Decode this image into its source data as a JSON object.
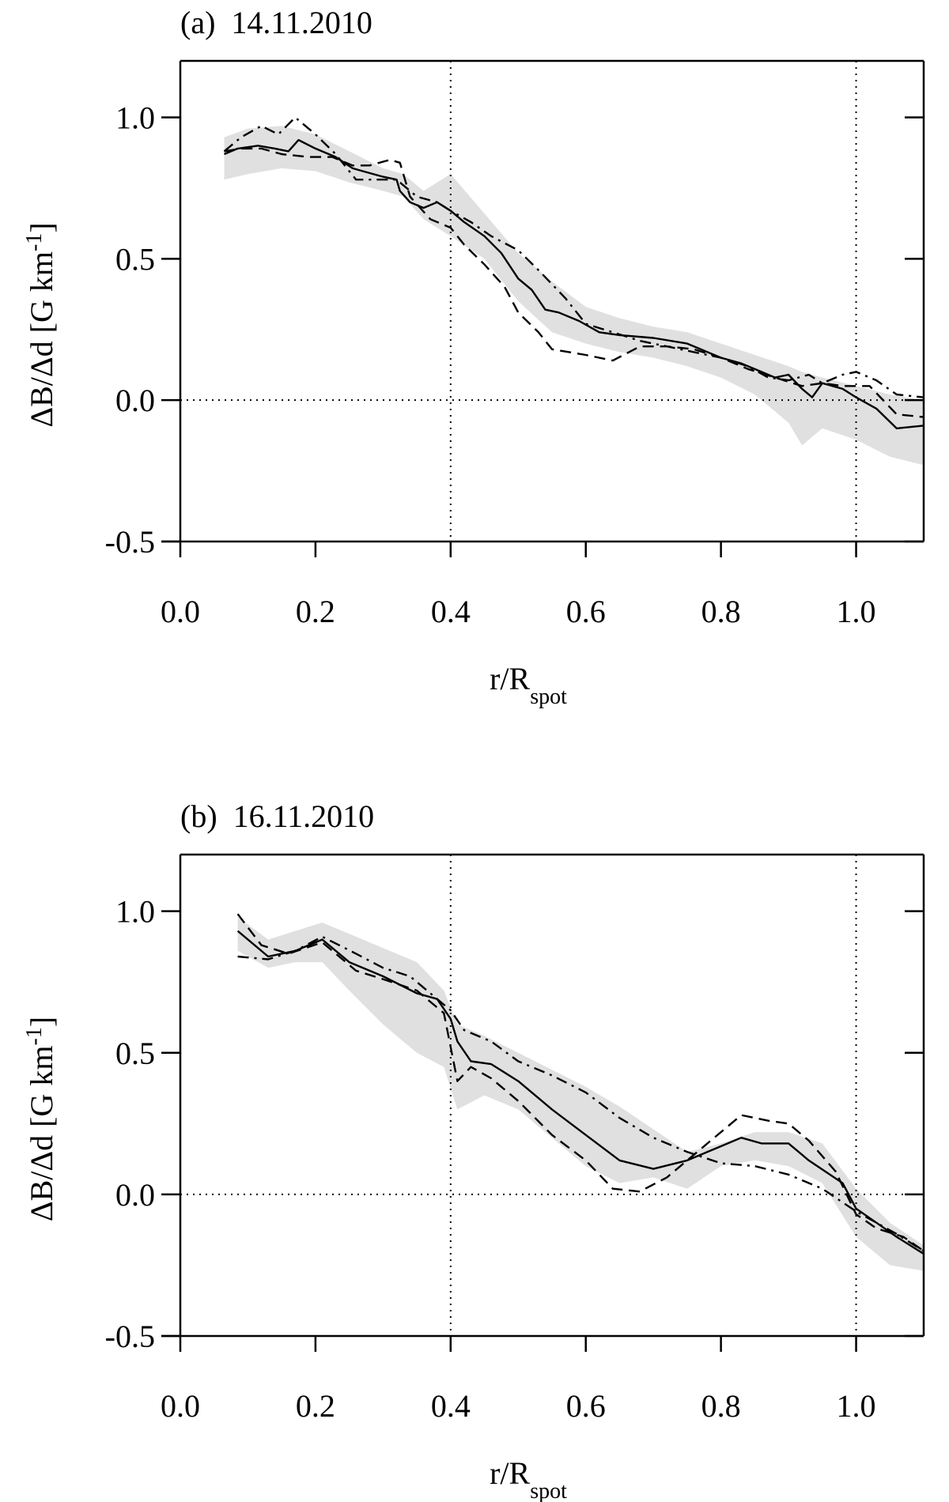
{
  "chart_data": [
    {
      "type": "line",
      "title": "(a)  14.11.2010",
      "xlabel_main": "r/R",
      "xlabel_sub": "spot",
      "ylabel_main": "ΔB/Δd [G km",
      "ylabel_sup": "-1",
      "ylabel_close": "]",
      "xlim": [
        0.0,
        1.1
      ],
      "ylim": [
        -0.5,
        1.2
      ],
      "xticks": [
        0.0,
        0.2,
        0.4,
        0.6,
        0.8,
        1.0
      ],
      "xtick_labels": [
        "0.0",
        "0.2",
        "0.4",
        "0.6",
        "0.8",
        "1.0"
      ],
      "yticks": [
        -0.5,
        0.0,
        0.5,
        1.0
      ],
      "ytick_labels": [
        "-0.5",
        "0.0",
        "0.5",
        "1.0"
      ],
      "vlines": [
        0.4,
        1.0
      ],
      "hline": 0.0,
      "band": {
        "x": [
          0.065,
          0.1,
          0.15,
          0.2,
          0.25,
          0.3,
          0.33,
          0.36,
          0.4,
          0.45,
          0.5,
          0.55,
          0.6,
          0.65,
          0.7,
          0.75,
          0.8,
          0.85,
          0.9,
          0.92,
          0.95,
          1.0,
          1.05,
          1.1
        ],
        "upper": [
          0.93,
          0.96,
          0.97,
          0.94,
          0.88,
          0.82,
          0.8,
          0.74,
          0.8,
          0.66,
          0.52,
          0.42,
          0.33,
          0.29,
          0.26,
          0.24,
          0.2,
          0.16,
          0.12,
          0.1,
          0.08,
          0.05,
          0.02,
          0.0
        ],
        "lower": [
          0.78,
          0.8,
          0.82,
          0.81,
          0.77,
          0.74,
          0.72,
          0.64,
          0.58,
          0.5,
          0.35,
          0.24,
          0.2,
          0.17,
          0.15,
          0.12,
          0.08,
          0.02,
          -0.08,
          -0.16,
          -0.1,
          -0.14,
          -0.2,
          -0.23
        ]
      },
      "series": [
        {
          "name": "solid",
          "style": "solid",
          "x": [
            0.065,
            0.085,
            0.115,
            0.14,
            0.16,
            0.175,
            0.2,
            0.23,
            0.255,
            0.27,
            0.3,
            0.32,
            0.325,
            0.34,
            0.36,
            0.38,
            0.4,
            0.42,
            0.45,
            0.475,
            0.5,
            0.52,
            0.54,
            0.56,
            0.59,
            0.62,
            0.65,
            0.7,
            0.75,
            0.8,
            0.83,
            0.86,
            0.88,
            0.9,
            0.92,
            0.935,
            0.95,
            0.98,
            1.0,
            1.03,
            1.06,
            1.1
          ],
          "y": [
            0.87,
            0.89,
            0.9,
            0.89,
            0.88,
            0.92,
            0.89,
            0.86,
            0.82,
            0.81,
            0.79,
            0.78,
            0.74,
            0.7,
            0.68,
            0.7,
            0.67,
            0.63,
            0.58,
            0.52,
            0.43,
            0.39,
            0.32,
            0.31,
            0.28,
            0.24,
            0.23,
            0.22,
            0.2,
            0.15,
            0.13,
            0.1,
            0.08,
            0.09,
            0.04,
            0.01,
            0.06,
            0.04,
            0.01,
            -0.03,
            -0.1,
            -0.09
          ]
        },
        {
          "name": "dashed",
          "style": "dashed",
          "x": [
            0.065,
            0.09,
            0.12,
            0.15,
            0.19,
            0.225,
            0.255,
            0.28,
            0.31,
            0.325,
            0.34,
            0.37,
            0.4,
            0.42,
            0.45,
            0.48,
            0.5,
            0.53,
            0.55,
            0.6,
            0.64,
            0.68,
            0.72,
            0.76,
            0.8,
            0.84,
            0.88,
            0.92,
            0.95,
            0.98,
            1.02,
            1.06,
            1.1
          ],
          "y": [
            0.88,
            0.89,
            0.89,
            0.87,
            0.86,
            0.86,
            0.83,
            0.83,
            0.85,
            0.84,
            0.72,
            0.64,
            0.61,
            0.55,
            0.48,
            0.4,
            0.31,
            0.24,
            0.18,
            0.16,
            0.14,
            0.19,
            0.19,
            0.18,
            0.15,
            0.11,
            0.08,
            0.05,
            0.06,
            0.05,
            0.05,
            -0.05,
            -0.06
          ]
        },
        {
          "name": "dash-dot",
          "style": "dashdot",
          "x": [
            0.065,
            0.09,
            0.12,
            0.145,
            0.17,
            0.2,
            0.23,
            0.26,
            0.29,
            0.32,
            0.35,
            0.38,
            0.4,
            0.43,
            0.46,
            0.5,
            0.53,
            0.57,
            0.6,
            0.64,
            0.68,
            0.72,
            0.76,
            0.8,
            0.84,
            0.87,
            0.9,
            0.93,
            0.95,
            0.98,
            1.0,
            1.03,
            1.06,
            1.1
          ],
          "y": [
            0.88,
            0.93,
            0.97,
            0.94,
            1.0,
            0.94,
            0.87,
            0.78,
            0.78,
            0.78,
            0.72,
            0.7,
            0.67,
            0.63,
            0.58,
            0.53,
            0.46,
            0.36,
            0.27,
            0.24,
            0.21,
            0.19,
            0.17,
            0.15,
            0.12,
            0.08,
            0.07,
            0.09,
            0.06,
            0.09,
            0.1,
            0.07,
            0.02,
            0.01
          ]
        }
      ]
    },
    {
      "type": "line",
      "title": "(b)  16.11.2010",
      "xlabel_main": "r/R",
      "xlabel_sub": "spot",
      "ylabel_main": "ΔB/Δd [G km",
      "ylabel_sup": "-1",
      "ylabel_close": "]",
      "xlim": [
        0.0,
        1.1
      ],
      "ylim": [
        -0.5,
        1.2
      ],
      "xticks": [
        0.0,
        0.2,
        0.4,
        0.6,
        0.8,
        1.0
      ],
      "xtick_labels": [
        "0.0",
        "0.2",
        "0.4",
        "0.6",
        "0.8",
        "1.0"
      ],
      "yticks": [
        -0.5,
        0.0,
        0.5,
        1.0
      ],
      "ytick_labels": [
        "-0.5",
        "0.0",
        "0.5",
        "1.0"
      ],
      "vlines": [
        0.4,
        1.0
      ],
      "hline": 0.0,
      "band": {
        "x": [
          0.085,
          0.13,
          0.17,
          0.21,
          0.25,
          0.3,
          0.35,
          0.39,
          0.41,
          0.45,
          0.5,
          0.55,
          0.6,
          0.65,
          0.7,
          0.75,
          0.8,
          0.85,
          0.9,
          0.95,
          1.0,
          1.05,
          1.1
        ],
        "upper": [
          0.98,
          0.9,
          0.93,
          0.96,
          0.92,
          0.87,
          0.82,
          0.72,
          0.6,
          0.56,
          0.5,
          0.44,
          0.38,
          0.31,
          0.23,
          0.15,
          0.18,
          0.22,
          0.22,
          0.18,
          0.02,
          -0.1,
          -0.18
        ],
        "lower": [
          0.86,
          0.8,
          0.82,
          0.82,
          0.72,
          0.6,
          0.5,
          0.45,
          0.3,
          0.35,
          0.3,
          0.2,
          0.1,
          0.04,
          0.06,
          0.02,
          0.1,
          0.12,
          0.1,
          0.04,
          -0.15,
          -0.25,
          -0.27
        ]
      },
      "series": [
        {
          "name": "solid",
          "style": "solid",
          "x": [
            0.085,
            0.13,
            0.17,
            0.21,
            0.25,
            0.3,
            0.35,
            0.38,
            0.4,
            0.41,
            0.43,
            0.46,
            0.5,
            0.55,
            0.6,
            0.65,
            0.7,
            0.75,
            0.8,
            0.83,
            0.86,
            0.9,
            0.93,
            0.98,
            1.0,
            1.03,
            1.06,
            1.1
          ],
          "y": [
            0.93,
            0.84,
            0.86,
            0.9,
            0.82,
            0.77,
            0.71,
            0.69,
            0.62,
            0.54,
            0.47,
            0.46,
            0.4,
            0.3,
            0.21,
            0.12,
            0.09,
            0.12,
            0.17,
            0.2,
            0.18,
            0.18,
            0.12,
            0.04,
            -0.05,
            -0.1,
            -0.15,
            -0.21
          ]
        },
        {
          "name": "dashed",
          "style": "dashed",
          "x": [
            0.085,
            0.12,
            0.16,
            0.21,
            0.26,
            0.3,
            0.35,
            0.39,
            0.41,
            0.43,
            0.46,
            0.5,
            0.55,
            0.6,
            0.64,
            0.68,
            0.72,
            0.78,
            0.83,
            0.87,
            0.9,
            0.93,
            0.97,
            1.0,
            1.03,
            1.07,
            1.1
          ],
          "y": [
            0.99,
            0.88,
            0.85,
            0.89,
            0.79,
            0.76,
            0.72,
            0.64,
            0.4,
            0.45,
            0.41,
            0.33,
            0.21,
            0.12,
            0.02,
            0.01,
            0.06,
            0.18,
            0.28,
            0.26,
            0.25,
            0.19,
            0.08,
            -0.07,
            -0.12,
            -0.15,
            -0.2
          ]
        },
        {
          "name": "dash-dot",
          "style": "dashdot",
          "x": [
            0.085,
            0.13,
            0.17,
            0.21,
            0.26,
            0.3,
            0.34,
            0.38,
            0.4,
            0.42,
            0.46,
            0.5,
            0.55,
            0.6,
            0.65,
            0.7,
            0.75,
            0.8,
            0.85,
            0.9,
            0.95,
            1.0,
            1.03,
            1.06,
            1.1
          ],
          "y": [
            0.84,
            0.83,
            0.86,
            0.91,
            0.85,
            0.8,
            0.77,
            0.69,
            0.65,
            0.58,
            0.54,
            0.47,
            0.42,
            0.36,
            0.27,
            0.2,
            0.15,
            0.11,
            0.1,
            0.07,
            0.02,
            -0.06,
            -0.1,
            -0.14,
            -0.2
          ]
        }
      ]
    }
  ]
}
